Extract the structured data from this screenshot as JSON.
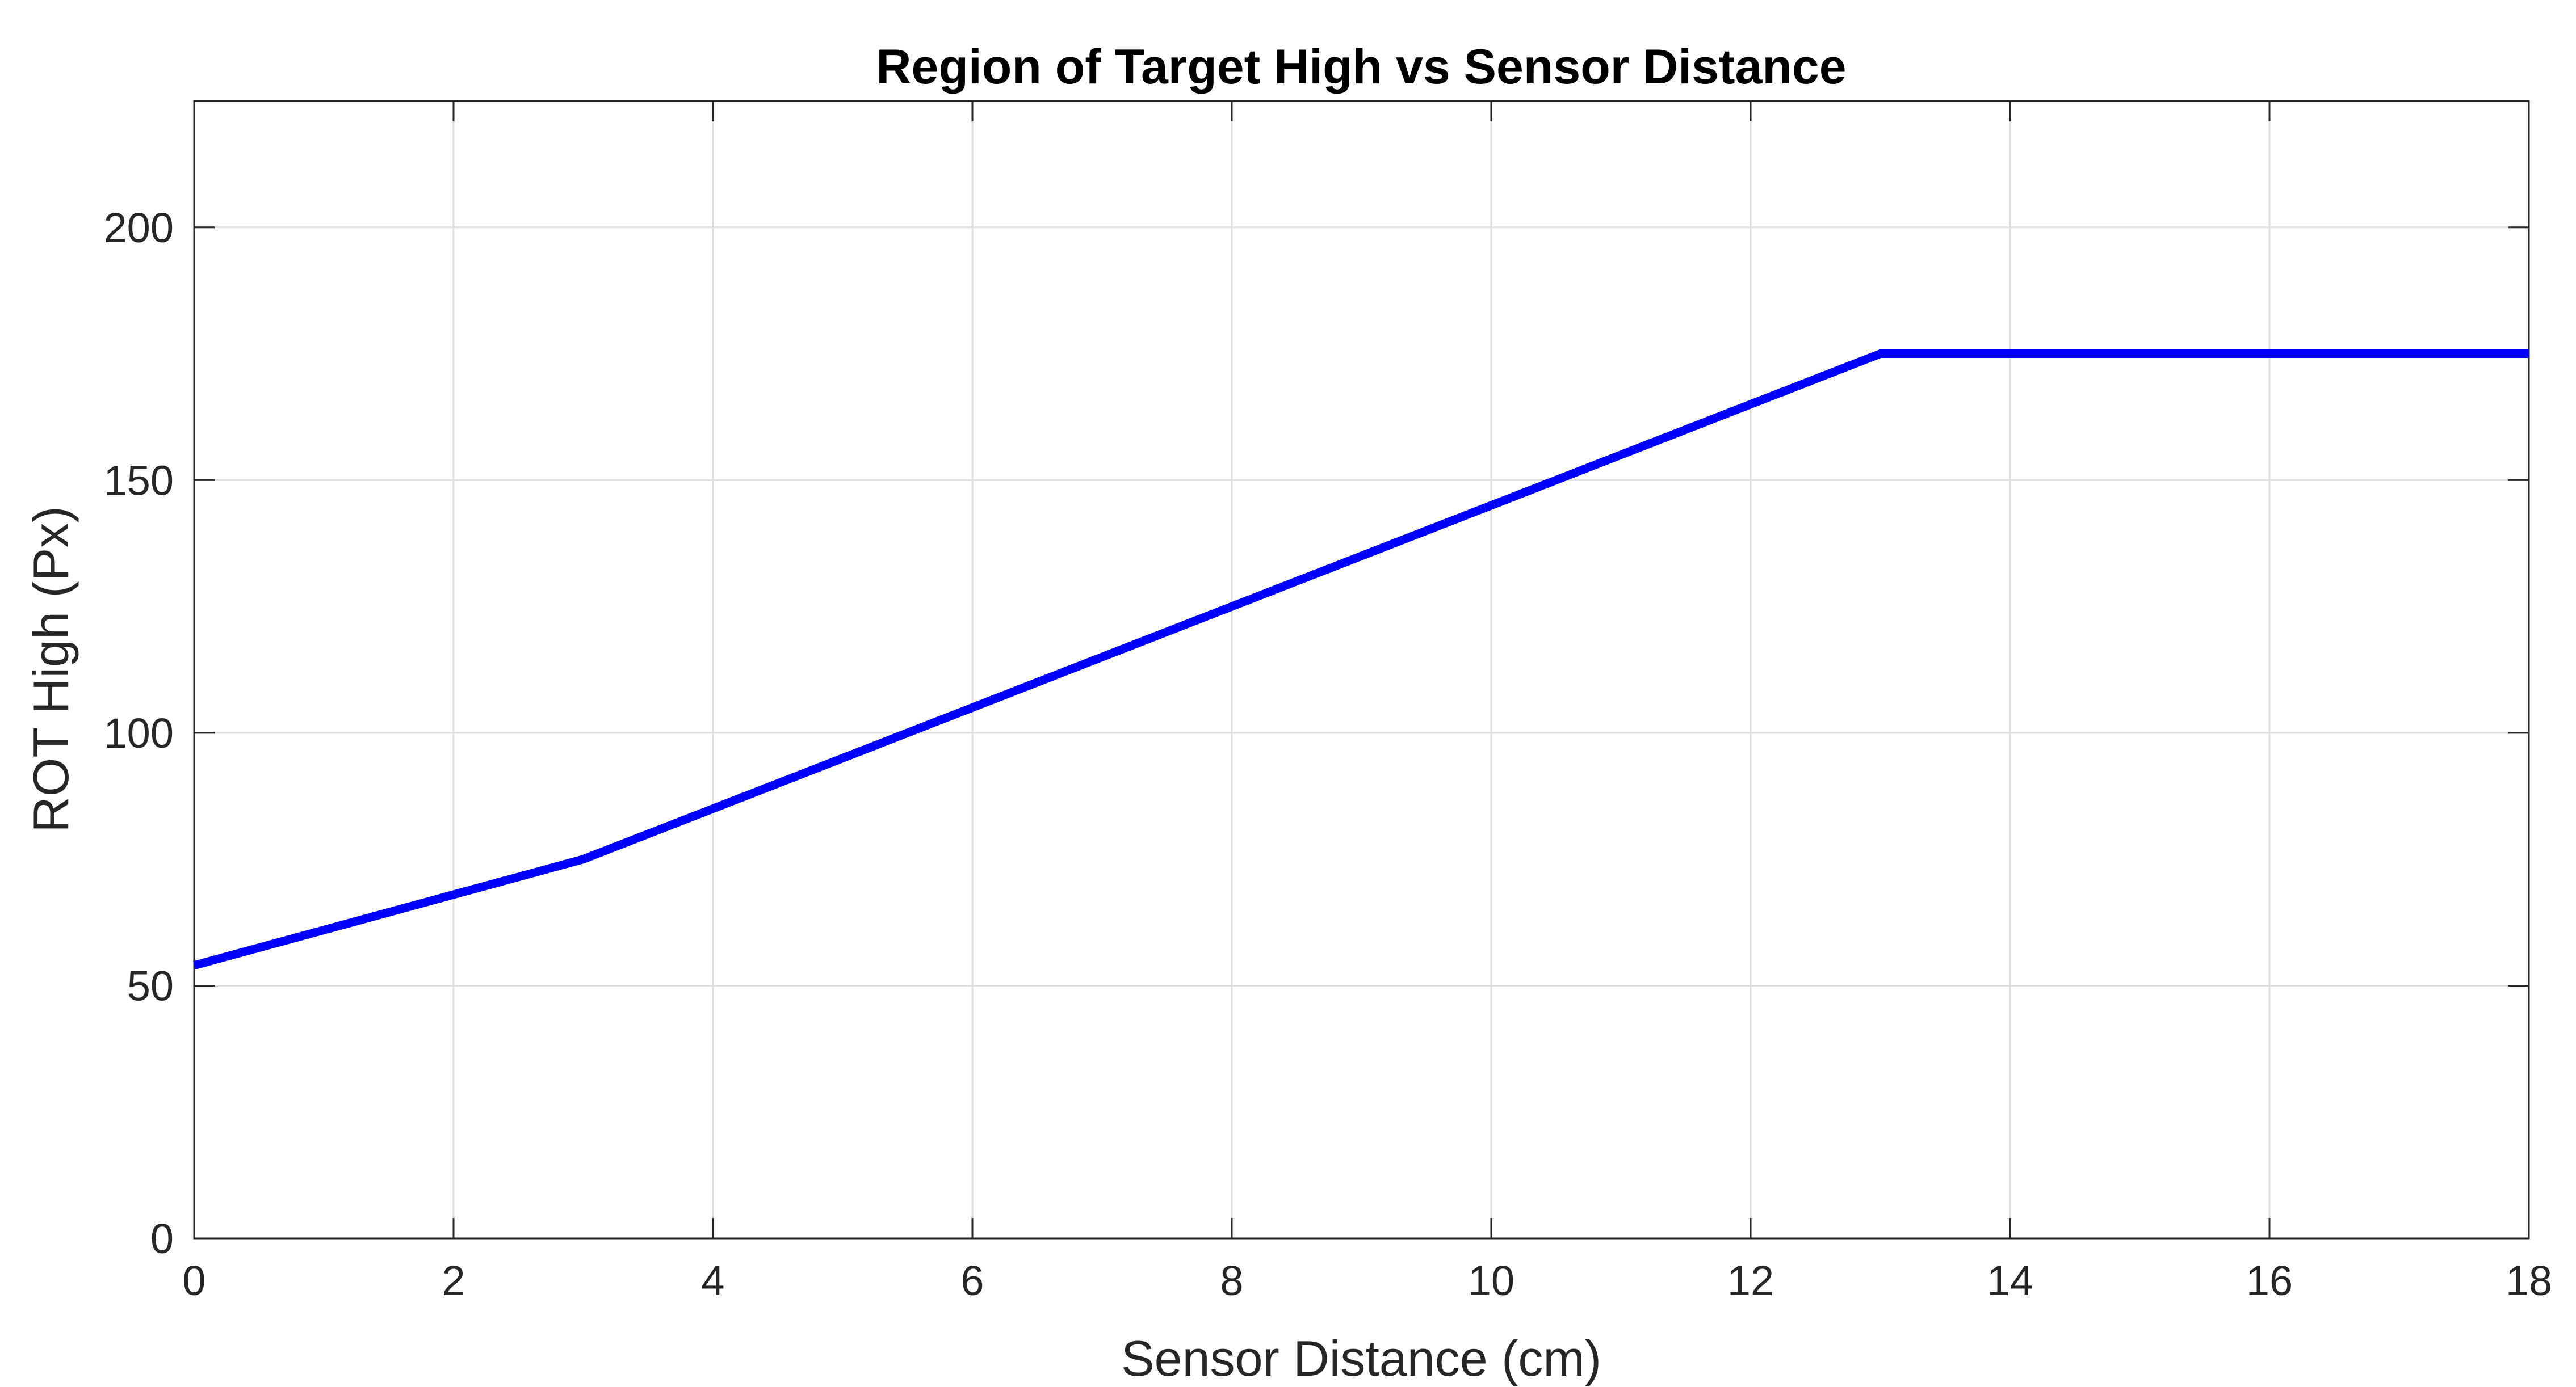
{
  "chart_data": {
    "type": "line",
    "title": "Region of Target High vs Sensor Distance",
    "xlabel": "Sensor Distance (cm)",
    "ylabel": "ROT High (Px)",
    "xlim": [
      0,
      18
    ],
    "ylim": [
      0,
      225
    ],
    "xticks": [
      0,
      2,
      4,
      6,
      8,
      10,
      12,
      14,
      16,
      18
    ],
    "yticks": [
      0,
      50,
      100,
      150,
      200
    ],
    "grid": true,
    "legend": "none",
    "series": [
      {
        "color": "#0000ff",
        "x": [
          0,
          3,
          13,
          18
        ],
        "y": [
          54,
          75,
          175,
          175
        ]
      }
    ]
  }
}
